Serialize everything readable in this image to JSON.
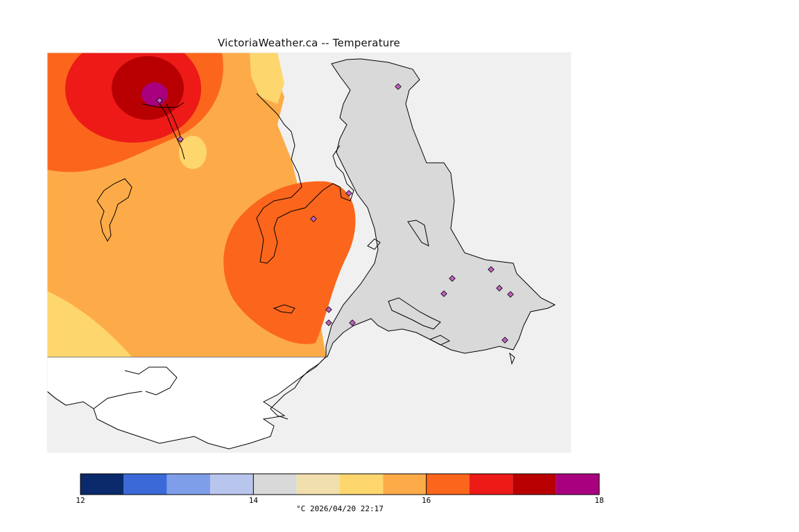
{
  "title": "VictoriaWeather.ca -- Temperature",
  "colors": {
    "water_background": "#f0f0f0",
    "land_outline": "#000000",
    "station_marker_fill": "#c060c0"
  },
  "legend": {
    "bins": [
      "#0b2a6b",
      "#3b6ad8",
      "#7f9eea",
      "#b8c6ee",
      "#d9d9d9",
      "#f1dfae",
      "#fdd66e",
      "#fdab48",
      "#fc661c",
      "#ed1a18",
      "#b80003",
      "#a8007e"
    ],
    "range": [
      12,
      18
    ],
    "ticks": [
      {
        "value": 12,
        "label": "12"
      },
      {
        "value": 14,
        "label": "14"
      },
      {
        "value": 16,
        "label": "16"
      },
      {
        "value": 18,
        "label": "18"
      }
    ],
    "caption": "°C  2026/04/20 22:17"
  },
  "stations_count_visible": 14
}
